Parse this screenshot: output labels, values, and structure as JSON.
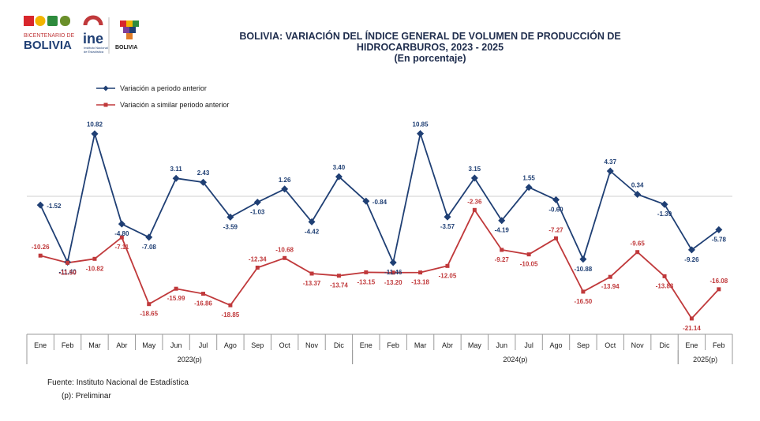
{
  "header": {
    "title_line1": "BOLIVIA: VARIACIÓN DEL ÍNDICE GENERAL DE VOLUMEN DE PRODUCCIÓN DE",
    "title_line2": "HIDROCARBUROS, 2023 - 2025",
    "title_line3": "(En porcentaje)"
  },
  "logos": {
    "bicentenario_top": "BICENTENARIO DE",
    "bicentenario_main": "BOLIVIA",
    "ine_main": "ine",
    "ine_sub1": "Instituto Nacional",
    "ine_sub2": "de Estadística",
    "state_label": "BOLIVIA"
  },
  "footer": {
    "source": "Fuente: Instituto Nacional de Estadística",
    "note": "(p): Preliminar"
  },
  "chart_data": {
    "type": "line",
    "categories": [
      "Ene",
      "Feb",
      "Mar",
      "Abr",
      "May",
      "Jun",
      "Jul",
      "Ago",
      "Sep",
      "Oct",
      "Nov",
      "Dic",
      "Ene",
      "Feb",
      "Mar",
      "Abr",
      "May",
      "Jun",
      "Jul",
      "Ago",
      "Sep",
      "Oct",
      "Nov",
      "Dic",
      "Ene",
      "Feb"
    ],
    "year_groups": [
      {
        "label": "2023(p)",
        "start": 0,
        "end": 11
      },
      {
        "label": "2024(p)",
        "start": 12,
        "end": 23
      },
      {
        "label": "2025(p)",
        "start": 24,
        "end": 25
      }
    ],
    "series": [
      {
        "name": "Variación a periodo anterior",
        "color": "#1f3f74",
        "marker": "diamond",
        "values": [
          -1.52,
          -11.4,
          10.82,
          -4.8,
          -7.08,
          3.11,
          2.43,
          -3.59,
          -1.03,
          1.26,
          -4.42,
          3.4,
          -0.84,
          -11.46,
          10.85,
          -3.57,
          3.15,
          -4.19,
          1.55,
          -0.6,
          -10.88,
          4.37,
          0.34,
          -1.39,
          -9.26,
          -5.78
        ],
        "labels": [
          "-1.52",
          "-11.40",
          "10.82",
          "-4.80",
          "-7.08",
          "3.11",
          "2.43",
          "-3.59",
          "-1.03",
          "1.26",
          "-4.42",
          "3.40",
          "-0.84",
          "-11.46",
          "10.85",
          "-3.57",
          "3.15",
          "-4.19",
          "1.55",
          "-0.60",
          "-10.88",
          "4.37",
          "0.34",
          "-1.39",
          "-9.26",
          "-5.78"
        ]
      },
      {
        "name": "Variación a similar periodo anterior",
        "color": "#c0393b",
        "marker": "square",
        "values": [
          -10.26,
          -11.5,
          -10.82,
          -7.11,
          -18.65,
          -15.99,
          -16.86,
          -18.85,
          -12.34,
          -10.68,
          -13.37,
          -13.74,
          -13.15,
          -13.2,
          -13.18,
          -12.05,
          -2.36,
          -9.27,
          -10.05,
          -7.27,
          -16.5,
          -13.94,
          -9.65,
          -13.83,
          -21.14,
          -16.08
        ],
        "labels": [
          "-10.26",
          "-11.50",
          "-10.82",
          "-7.11",
          "-18.65",
          "-15.99",
          "-16.86",
          "-18.85",
          "-12.34",
          "-10.68",
          "-13.37",
          "-13.74",
          "-13.15",
          "-13.20",
          "-13.18",
          "-12.05",
          "-2.36",
          "-9.27",
          "-10.05",
          "-7.27",
          "-16.50",
          "-13.94",
          "-9.65",
          "-13.83",
          "-21.14",
          "-16.08"
        ]
      }
    ],
    "legend_position": "top-left",
    "grid": false
  }
}
